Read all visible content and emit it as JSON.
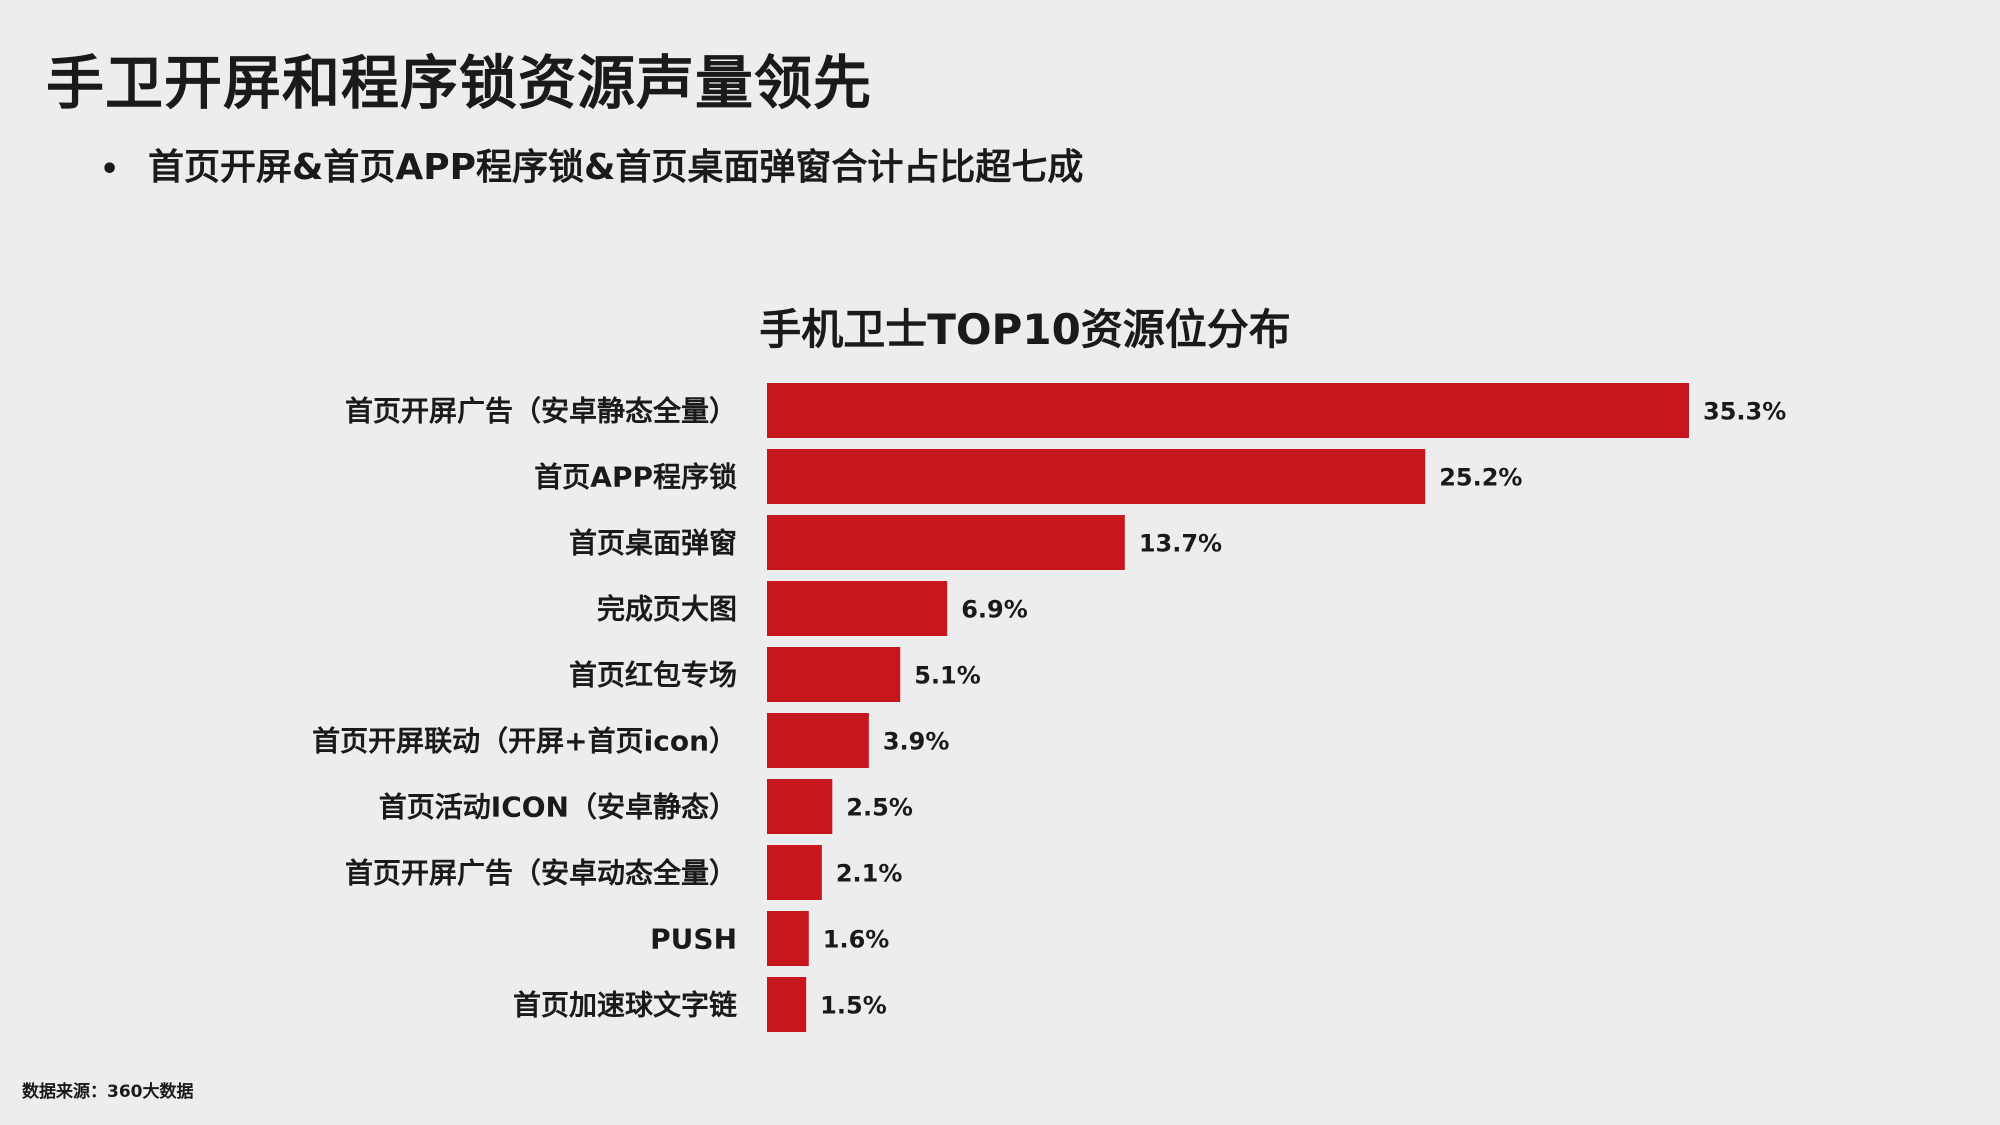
{
  "header": {
    "title": "手卫开屏和程序锁资源声量领先",
    "bullet": "首页开屏&首页APP程序锁&首页桌面弹窗合计占比超七成"
  },
  "footer": {
    "source": "数据来源：360大数据"
  },
  "colors": {
    "bar": "#c8161f",
    "background": "#ededed"
  },
  "chart_data": {
    "type": "bar",
    "orientation": "horizontal",
    "title": "手机卫士TOP10资源位分布",
    "categories": [
      "首页开屏广告（安卓静态全量）",
      "首页APP程序锁",
      "首页桌面弹窗",
      "完成页大图",
      "首页红包专场",
      "首页开屏联动（开屏+首页icon）",
      "首页活动ICON（安卓静态）",
      "首页开屏广告（安卓动态全量）",
      "PUSH",
      "首页加速球文字链"
    ],
    "values": [
      35.3,
      25.2,
      13.7,
      6.9,
      5.1,
      3.9,
      2.5,
      2.1,
      1.6,
      1.5
    ],
    "value_labels": [
      "35.3%",
      "25.2%",
      "13.7%",
      "6.9%",
      "5.1%",
      "3.9%",
      "2.5%",
      "2.1%",
      "1.6%",
      "1.5%"
    ],
    "xlabel": "",
    "ylabel": "",
    "xlim": [
      0,
      35.3
    ],
    "grid": false,
    "legend": "none"
  }
}
